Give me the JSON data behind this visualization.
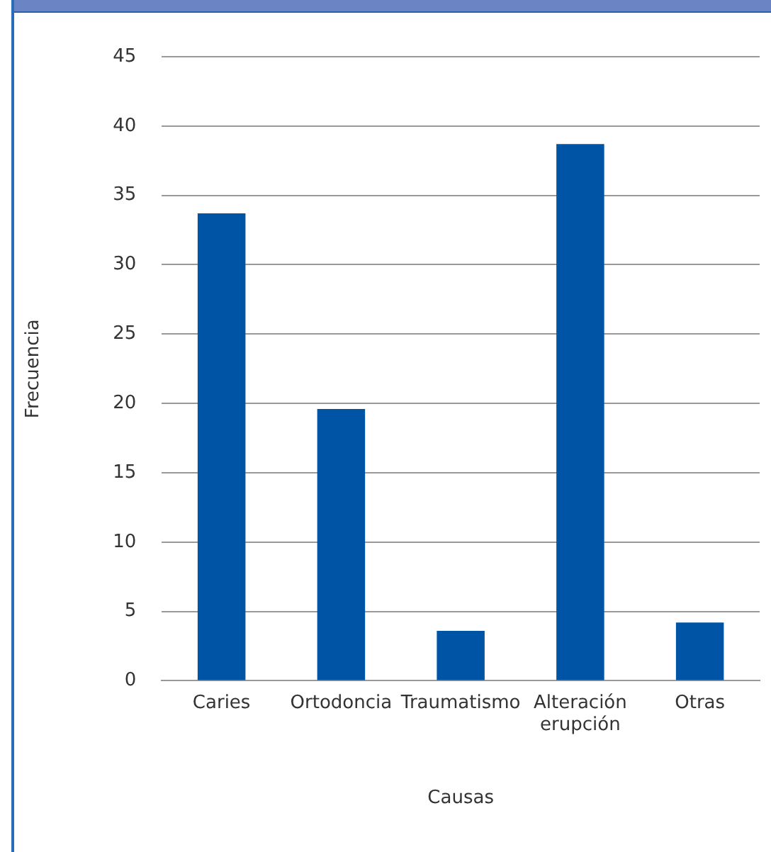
{
  "chart_data": {
    "type": "bar",
    "xlabel": "Causas",
    "ylabel": "Frecuencia",
    "categories": [
      "Caries",
      "Ortodoncia",
      "Traumatismo",
      "Alteración erupción",
      "Otras"
    ],
    "values": [
      33.7,
      19.6,
      3.6,
      38.7,
      4.2
    ],
    "color": "#0054a6",
    "ylim": [
      0,
      45
    ],
    "yticks": [
      0,
      5,
      10,
      15,
      20,
      25,
      30,
      35,
      40,
      45
    ],
    "grid": "y",
    "legend": false
  }
}
